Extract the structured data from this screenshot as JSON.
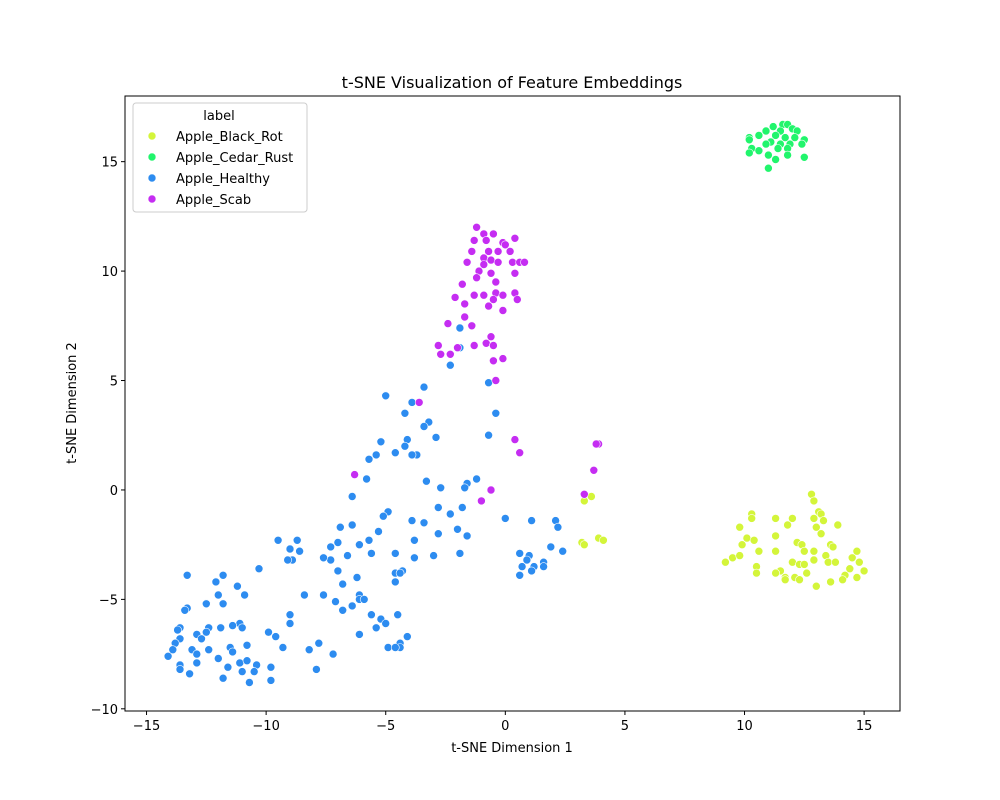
{
  "chart_data": {
    "type": "scatter",
    "title": "t-SNE Visualization of Feature Embeddings",
    "xlabel": "t-SNE Dimension 1",
    "ylabel": "t-SNE Dimension 2",
    "xlim": [
      -15.9,
      16.5
    ],
    "ylim": [
      -10.1,
      18.0
    ],
    "xticks": [
      -15,
      -10,
      -5,
      0,
      5,
      10,
      15
    ],
    "yticks": [
      -10,
      -5,
      0,
      5,
      10,
      15
    ],
    "xtick_labels": [
      "−15",
      "−10",
      "−5",
      "0",
      "5",
      "10",
      "15"
    ],
    "ytick_labels": [
      "−10",
      "−5",
      "0",
      "5",
      "10",
      "15"
    ],
    "grid": false,
    "legend": {
      "title": "label",
      "placement": "top-left"
    },
    "series": [
      {
        "name": "Apple_Black_Rot",
        "color": "#d4f53a",
        "points": [
          [
            12.8,
            -0.2
          ],
          [
            12.9,
            -0.5
          ],
          [
            13.1,
            -1.0
          ],
          [
            13.2,
            -1.1
          ],
          [
            12.9,
            -1.3
          ],
          [
            11.3,
            -1.3
          ],
          [
            10.3,
            -1.1
          ],
          [
            10.3,
            -1.3
          ],
          [
            12.0,
            -1.3
          ],
          [
            13.3,
            -1.4
          ],
          [
            11.8,
            -1.6
          ],
          [
            13.9,
            -1.6
          ],
          [
            9.8,
            -1.7
          ],
          [
            13.0,
            -1.7
          ],
          [
            10.1,
            -2.2
          ],
          [
            10.4,
            -2.3
          ],
          [
            11.3,
            -2.1
          ],
          [
            13.2,
            -2.0
          ],
          [
            9.9,
            -2.5
          ],
          [
            12.2,
            -2.4
          ],
          [
            12.4,
            -2.5
          ],
          [
            13.6,
            -2.5
          ],
          [
            13.7,
            -2.6
          ],
          [
            14.7,
            -2.8
          ],
          [
            10.6,
            -2.8
          ],
          [
            11.3,
            -2.8
          ],
          [
            12.5,
            -2.8
          ],
          [
            12.9,
            -2.8
          ],
          [
            13.4,
            -3.0
          ],
          [
            9.5,
            -3.1
          ],
          [
            9.8,
            -3.0
          ],
          [
            14.5,
            -3.1
          ],
          [
            9.2,
            -3.3
          ],
          [
            12.0,
            -3.3
          ],
          [
            12.3,
            -3.4
          ],
          [
            12.5,
            -3.4
          ],
          [
            12.9,
            -3.2
          ],
          [
            13.5,
            -3.3
          ],
          [
            13.8,
            -3.3
          ],
          [
            14.8,
            -3.3
          ],
          [
            10.5,
            -3.5
          ],
          [
            14.4,
            -3.6
          ],
          [
            15.0,
            -3.7
          ],
          [
            11.5,
            -3.7
          ],
          [
            11.3,
            -3.8
          ],
          [
            12.6,
            -3.8
          ],
          [
            10.5,
            -3.8
          ],
          [
            14.2,
            -3.9
          ],
          [
            11.7,
            -4.0
          ],
          [
            12.1,
            -4.0
          ],
          [
            14.7,
            -4.0
          ],
          [
            11.7,
            -4.1
          ],
          [
            12.3,
            -4.1
          ],
          [
            13.6,
            -4.2
          ],
          [
            14.1,
            -4.1
          ],
          [
            13.0,
            -4.4
          ],
          [
            3.6,
            -0.3
          ],
          [
            3.3,
            -0.5
          ],
          [
            3.9,
            -2.2
          ],
          [
            4.1,
            -2.3
          ],
          [
            3.2,
            -2.4
          ],
          [
            3.3,
            -2.5
          ]
        ]
      },
      {
        "name": "Apple_Cedar_Rust",
        "color": "#21f56c",
        "points": [
          [
            11.6,
            16.7
          ],
          [
            11.8,
            16.7
          ],
          [
            11.2,
            16.6
          ],
          [
            12.0,
            16.5
          ],
          [
            11.5,
            16.4
          ],
          [
            10.9,
            16.4
          ],
          [
            12.2,
            16.4
          ],
          [
            10.6,
            16.2
          ],
          [
            11.3,
            16.2
          ],
          [
            10.2,
            16.1
          ],
          [
            11.7,
            16.1
          ],
          [
            12.1,
            16.1
          ],
          [
            10.2,
            16.0
          ],
          [
            11.1,
            15.9
          ],
          [
            12.5,
            16.0
          ],
          [
            10.9,
            15.8
          ],
          [
            11.5,
            15.8
          ],
          [
            11.9,
            15.8
          ],
          [
            12.4,
            15.8
          ],
          [
            10.3,
            15.6
          ],
          [
            10.6,
            15.5
          ],
          [
            11.4,
            15.6
          ],
          [
            11.8,
            15.6
          ],
          [
            10.2,
            15.4
          ],
          [
            11.0,
            15.3
          ],
          [
            11.8,
            15.3
          ],
          [
            11.3,
            15.1
          ],
          [
            12.5,
            15.2
          ],
          [
            11.0,
            14.7
          ]
        ]
      },
      {
        "name": "Apple_Healthy",
        "color": "#2d8cf0",
        "points": [
          [
            -1.9,
            7.4
          ],
          [
            -2.3,
            5.7
          ],
          [
            -1.9,
            6.5
          ],
          [
            -0.7,
            4.9
          ],
          [
            -3.4,
            4.7
          ],
          [
            -5.0,
            4.3
          ],
          [
            -3.9,
            4.0
          ],
          [
            -4.2,
            3.5
          ],
          [
            -0.4,
            3.5
          ],
          [
            -3.2,
            3.1
          ],
          [
            -3.4,
            2.9
          ],
          [
            -0.7,
            2.5
          ],
          [
            -2.9,
            2.4
          ],
          [
            -4.1,
            2.3
          ],
          [
            -5.2,
            2.2
          ],
          [
            -4.2,
            2.0
          ],
          [
            -3.7,
            1.6
          ],
          [
            -3.9,
            1.6
          ],
          [
            -4.6,
            1.7
          ],
          [
            -5.4,
            1.6
          ],
          [
            -5.7,
            1.4
          ],
          [
            -3.3,
            0.4
          ],
          [
            -1.2,
            0.5
          ],
          [
            -5.8,
            0.5
          ],
          [
            -1.6,
            0.3
          ],
          [
            -1.7,
            0.1
          ],
          [
            -2.7,
            0.1
          ],
          [
            -6.4,
            -0.3
          ],
          [
            -4.9,
            -1.0
          ],
          [
            -5.1,
            -1.2
          ],
          [
            -2.8,
            -0.8
          ],
          [
            -1.8,
            -0.8
          ],
          [
            -2.3,
            -1.1
          ],
          [
            0.0,
            -1.3
          ],
          [
            1.1,
            -1.4
          ],
          [
            2.1,
            -1.4
          ],
          [
            -3.9,
            -1.4
          ],
          [
            -3.4,
            -1.5
          ],
          [
            -6.4,
            -1.6
          ],
          [
            -6.9,
            -1.7
          ],
          [
            -2.0,
            -1.8
          ],
          [
            -5.3,
            -1.9
          ],
          [
            2.2,
            -1.7
          ],
          [
            -2.8,
            -2.0
          ],
          [
            -1.6,
            -2.1
          ],
          [
            -3.8,
            -2.3
          ],
          [
            -9.5,
            -2.3
          ],
          [
            -8.7,
            -2.3
          ],
          [
            -5.7,
            -2.3
          ],
          [
            -6.1,
            -2.5
          ],
          [
            -7.0,
            -2.4
          ],
          [
            -7.3,
            -2.6
          ],
          [
            -9.0,
            -2.7
          ],
          [
            -8.6,
            -2.8
          ],
          [
            -5.6,
            -2.9
          ],
          [
            -6.6,
            -3.0
          ],
          [
            -4.6,
            -2.9
          ],
          [
            -3.0,
            -3.0
          ],
          [
            -1.9,
            -2.9
          ],
          [
            -7.3,
            -3.2
          ],
          [
            -7.6,
            -3.1
          ],
          [
            -8.9,
            -3.2
          ],
          [
            -3.8,
            -3.1
          ],
          [
            -9.1,
            -3.2
          ],
          [
            1.9,
            -2.6
          ],
          [
            2.4,
            -2.8
          ],
          [
            0.6,
            -2.9
          ],
          [
            1.0,
            -3.0
          ],
          [
            0.9,
            -3.2
          ],
          [
            1.2,
            -3.5
          ],
          [
            1.6,
            -3.3
          ],
          [
            0.7,
            -3.5
          ],
          [
            1.6,
            -3.5
          ],
          [
            1.1,
            -3.7
          ],
          [
            0.6,
            -3.9
          ],
          [
            -10.3,
            -3.6
          ],
          [
            -13.3,
            -3.9
          ],
          [
            -11.8,
            -3.9
          ],
          [
            -7.0,
            -3.7
          ],
          [
            -4.6,
            -3.8
          ],
          [
            -4.3,
            -3.7
          ],
          [
            -4.4,
            -3.8
          ],
          [
            -6.2,
            -4.0
          ],
          [
            -6.8,
            -4.3
          ],
          [
            -4.6,
            -4.2
          ],
          [
            -12.1,
            -4.2
          ],
          [
            -11.2,
            -4.4
          ],
          [
            -8.4,
            -4.8
          ],
          [
            -7.6,
            -4.8
          ],
          [
            -6.1,
            -4.8
          ],
          [
            -6.1,
            -5.0
          ],
          [
            -5.9,
            -5.0
          ],
          [
            -10.9,
            -4.8
          ],
          [
            -12.0,
            -4.8
          ],
          [
            -12.5,
            -5.2
          ],
          [
            -13.3,
            -5.4
          ],
          [
            -13.4,
            -5.5
          ],
          [
            -11.8,
            -5.2
          ],
          [
            -7.1,
            -5.1
          ],
          [
            -6.4,
            -5.3
          ],
          [
            -6.8,
            -5.5
          ],
          [
            -5.6,
            -5.7
          ],
          [
            -4.5,
            -5.7
          ],
          [
            -5.2,
            -5.9
          ],
          [
            -9.0,
            -5.7
          ],
          [
            -9.0,
            -6.1
          ],
          [
            -11.1,
            -6.1
          ],
          [
            -11.4,
            -6.2
          ],
          [
            -11.9,
            -6.3
          ],
          [
            -11.0,
            -6.3
          ],
          [
            -12.4,
            -6.3
          ],
          [
            -12.5,
            -6.5
          ],
          [
            -13.6,
            -6.3
          ],
          [
            -13.7,
            -6.4
          ],
          [
            -12.9,
            -6.6
          ],
          [
            -13.6,
            -6.8
          ],
          [
            -12.7,
            -6.8
          ],
          [
            -5.0,
            -6.1
          ],
          [
            -5.4,
            -6.3
          ],
          [
            -4.1,
            -6.7
          ],
          [
            -6.1,
            -6.6
          ],
          [
            -4.4,
            -7.0
          ],
          [
            -9.9,
            -6.5
          ],
          [
            -9.6,
            -6.7
          ],
          [
            -13.8,
            -7.0
          ],
          [
            -13.9,
            -7.3
          ],
          [
            -13.1,
            -7.3
          ],
          [
            -12.4,
            -7.3
          ],
          [
            -12.9,
            -7.5
          ],
          [
            -11.5,
            -7.2
          ],
          [
            -11.4,
            -7.4
          ],
          [
            -10.8,
            -7.1
          ],
          [
            -9.3,
            -7.2
          ],
          [
            -8.2,
            -7.3
          ],
          [
            -7.8,
            -7.0
          ],
          [
            -7.2,
            -7.5
          ],
          [
            -4.9,
            -7.2
          ],
          [
            -4.4,
            -7.2
          ],
          [
            -4.6,
            -7.2
          ],
          [
            -14.1,
            -7.6
          ],
          [
            -12.0,
            -7.7
          ],
          [
            -11.1,
            -7.9
          ],
          [
            -10.8,
            -7.8
          ],
          [
            -11.6,
            -8.1
          ],
          [
            -10.4,
            -8.0
          ],
          [
            -9.8,
            -8.1
          ],
          [
            -12.9,
            -7.9
          ],
          [
            -13.6,
            -8.0
          ],
          [
            -13.6,
            -8.2
          ],
          [
            -13.2,
            -8.4
          ],
          [
            -11.0,
            -8.3
          ],
          [
            -10.5,
            -8.3
          ],
          [
            -7.9,
            -8.2
          ],
          [
            -11.8,
            -8.6
          ],
          [
            -10.7,
            -8.8
          ],
          [
            -9.8,
            -8.7
          ]
        ]
      },
      {
        "name": "Apple_Scab",
        "color": "#c52df2",
        "points": [
          [
            -1.2,
            12.0
          ],
          [
            -0.5,
            11.7
          ],
          [
            -0.9,
            11.7
          ],
          [
            -1.3,
            11.4
          ],
          [
            -0.8,
            11.4
          ],
          [
            0.4,
            11.5
          ],
          [
            -0.1,
            11.3
          ],
          [
            0.0,
            11.2
          ],
          [
            -1.4,
            10.9
          ],
          [
            -0.7,
            10.9
          ],
          [
            -0.3,
            10.9
          ],
          [
            0.2,
            10.9
          ],
          [
            -0.9,
            10.6
          ],
          [
            -0.6,
            10.5
          ],
          [
            -0.3,
            10.4
          ],
          [
            0.3,
            10.4
          ],
          [
            0.6,
            10.4
          ],
          [
            0.8,
            10.4
          ],
          [
            -1.6,
            10.4
          ],
          [
            -0.9,
            10.3
          ],
          [
            -1.1,
            10.0
          ],
          [
            0.4,
            9.9
          ],
          [
            -1.2,
            9.7
          ],
          [
            -0.6,
            9.9
          ],
          [
            -0.4,
            9.5
          ],
          [
            -1.8,
            9.4
          ],
          [
            -1.3,
            8.9
          ],
          [
            -0.9,
            8.9
          ],
          [
            -2.1,
            8.8
          ],
          [
            -0.4,
            9.0
          ],
          [
            -0.1,
            8.9
          ],
          [
            -0.5,
            8.7
          ],
          [
            0.4,
            9.0
          ],
          [
            0.5,
            8.7
          ],
          [
            -1.7,
            8.5
          ],
          [
            -0.7,
            8.4
          ],
          [
            -0.1,
            8.2
          ],
          [
            -1.7,
            7.9
          ],
          [
            -2.4,
            7.6
          ],
          [
            -1.4,
            7.5
          ],
          [
            -0.6,
            7.0
          ],
          [
            -0.8,
            6.7
          ],
          [
            -0.5,
            6.6
          ],
          [
            -1.3,
            6.6
          ],
          [
            -2.8,
            6.6
          ],
          [
            -2.7,
            6.2
          ],
          [
            -2.3,
            6.2
          ],
          [
            -2.0,
            6.5
          ],
          [
            -0.5,
            5.9
          ],
          [
            -0.1,
            6.0
          ],
          [
            -0.4,
            5.0
          ],
          [
            -3.6,
            4.0
          ],
          [
            0.4,
            2.3
          ],
          [
            0.6,
            1.7
          ],
          [
            3.9,
            2.1
          ],
          [
            3.8,
            2.1
          ],
          [
            3.7,
            0.9
          ],
          [
            -6.3,
            0.7
          ],
          [
            3.3,
            -0.2
          ],
          [
            -0.6,
            0.0
          ],
          [
            -1.0,
            -0.5
          ]
        ]
      }
    ]
  }
}
